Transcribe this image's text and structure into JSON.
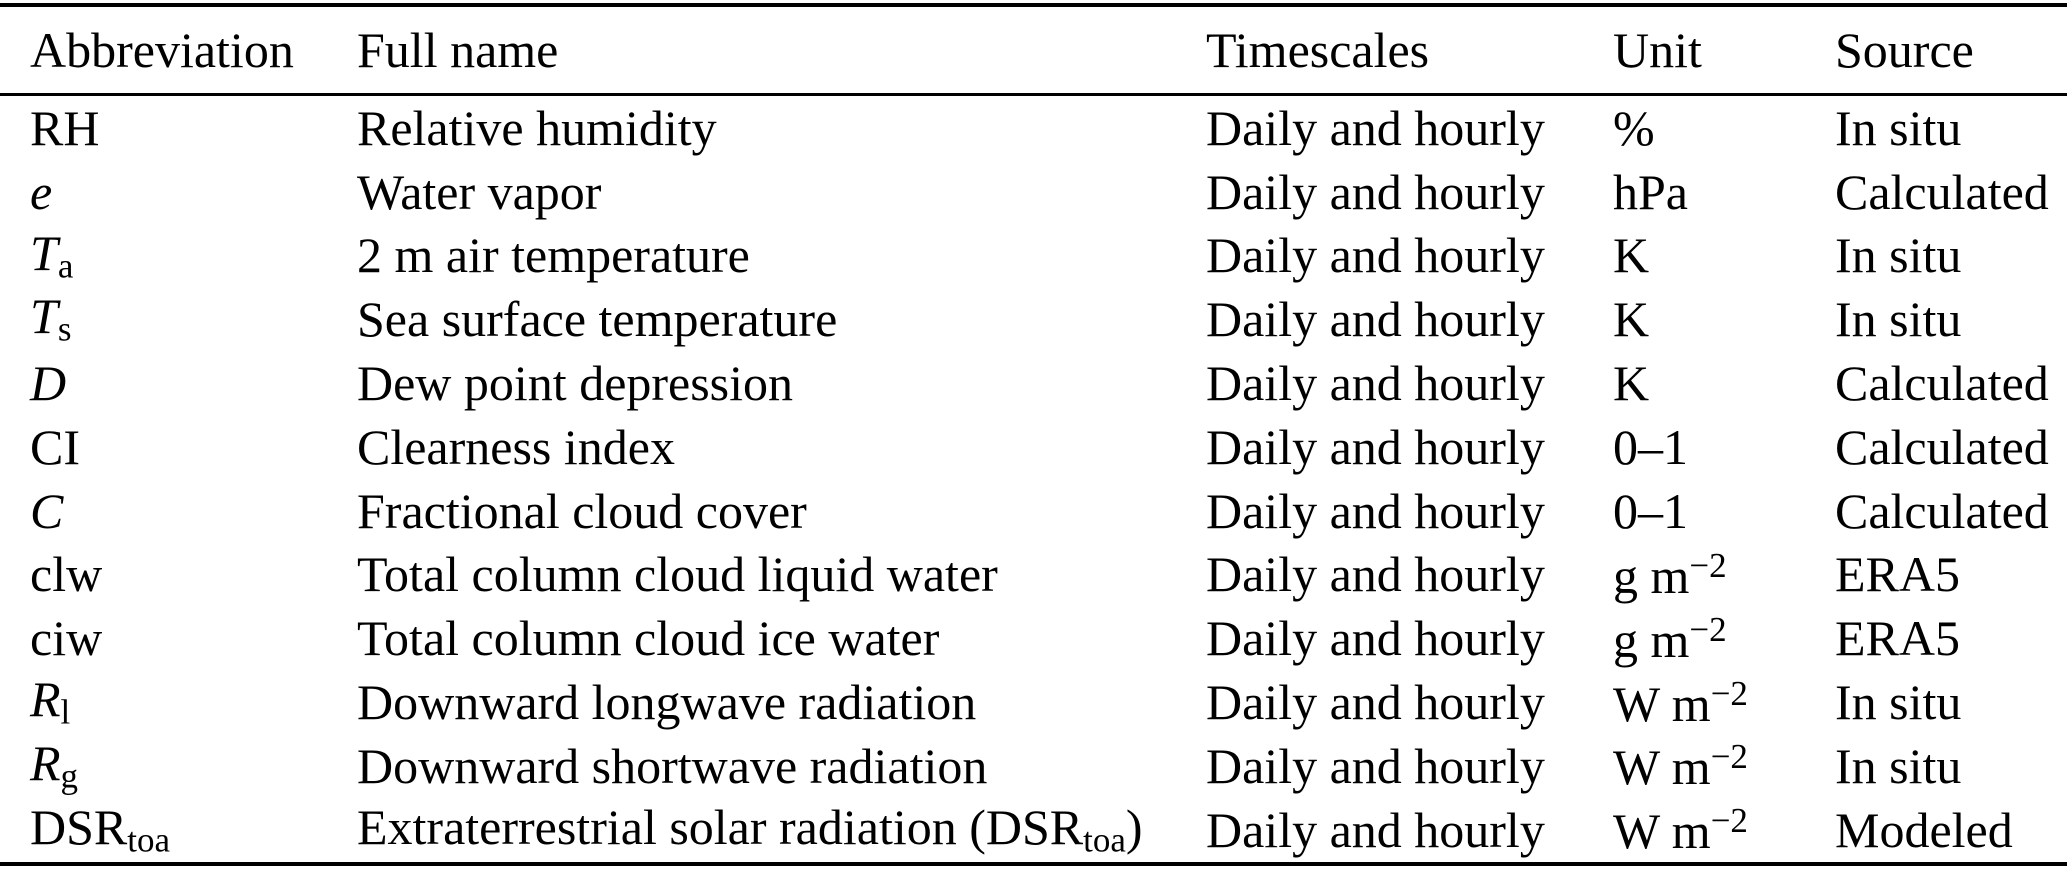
{
  "table": {
    "headers": [
      "Abbreviation",
      "Full name",
      "Timescales",
      "Unit",
      "Source"
    ],
    "rows": [
      {
        "abbr": [
          {
            "t": "RH"
          }
        ],
        "full_name": "Relative humidity",
        "timescales": "Daily and hourly",
        "unit": [
          {
            "t": "%"
          }
        ],
        "source": "In situ"
      },
      {
        "abbr": [
          {
            "t": "e",
            "style": "italic"
          }
        ],
        "full_name": "Water vapor",
        "timescales": "Daily and hourly",
        "unit": [
          {
            "t": "hPa"
          }
        ],
        "source": "Calculated"
      },
      {
        "abbr": [
          {
            "t": "T",
            "style": "italic"
          },
          {
            "t": "a",
            "style": "sub"
          }
        ],
        "full_name": "2 m air temperature",
        "timescales": "Daily and hourly",
        "unit": [
          {
            "t": "K"
          }
        ],
        "source": "In situ"
      },
      {
        "abbr": [
          {
            "t": "T",
            "style": "italic"
          },
          {
            "t": "s",
            "style": "sub"
          }
        ],
        "full_name": "Sea surface temperature",
        "timescales": "Daily and hourly",
        "unit": [
          {
            "t": "K"
          }
        ],
        "source": "In situ"
      },
      {
        "abbr": [
          {
            "t": "D",
            "style": "italic"
          }
        ],
        "full_name": "Dew point depression",
        "timescales": "Daily and hourly",
        "unit": [
          {
            "t": "K"
          }
        ],
        "source": "Calculated"
      },
      {
        "abbr": [
          {
            "t": "CI"
          }
        ],
        "full_name": "Clearness index",
        "timescales": "Daily and hourly",
        "unit": [
          {
            "t": "0–1"
          }
        ],
        "source": "Calculated"
      },
      {
        "abbr": [
          {
            "t": "C",
            "style": "italic"
          }
        ],
        "full_name": "Fractional cloud cover",
        "timescales": "Daily and hourly",
        "unit": [
          {
            "t": "0–1"
          }
        ],
        "source": "Calculated"
      },
      {
        "abbr": [
          {
            "t": "clw"
          }
        ],
        "full_name": "Total column cloud liquid water",
        "timescales": "Daily and hourly",
        "unit": [
          {
            "t": "g m"
          },
          {
            "t": "−2",
            "style": "sup"
          }
        ],
        "source": "ERA5"
      },
      {
        "abbr": [
          {
            "t": "ciw"
          }
        ],
        "full_name": "Total column cloud ice water",
        "timescales": "Daily and hourly",
        "unit": [
          {
            "t": "g m"
          },
          {
            "t": "−2",
            "style": "sup"
          }
        ],
        "source": "ERA5"
      },
      {
        "abbr": [
          {
            "t": "R",
            "style": "italic"
          },
          {
            "t": "l",
            "style": "sub"
          }
        ],
        "full_name": "Downward longwave radiation",
        "timescales": "Daily and hourly",
        "unit": [
          {
            "t": "W m"
          },
          {
            "t": "−2",
            "style": "sup"
          }
        ],
        "source": "In situ"
      },
      {
        "abbr": [
          {
            "t": "R",
            "style": "italic"
          },
          {
            "t": "g",
            "style": "sub"
          }
        ],
        "full_name": "Downward shortwave radiation",
        "timescales": "Daily and hourly",
        "unit": [
          {
            "t": "W m"
          },
          {
            "t": "−2",
            "style": "sup"
          }
        ],
        "source": "In situ"
      },
      {
        "abbr": [
          {
            "t": "DSR"
          },
          {
            "t": "toa",
            "style": "sub"
          }
        ],
        "full_name": [
          {
            "t": "Extraterrestrial solar radiation (DSR"
          },
          {
            "t": "toa",
            "style": "sub"
          },
          {
            "t": ")"
          }
        ],
        "timescales": "Daily and hourly",
        "unit": [
          {
            "t": "W m"
          },
          {
            "t": "−2",
            "style": "sup"
          }
        ],
        "source": "Modeled"
      }
    ]
  }
}
